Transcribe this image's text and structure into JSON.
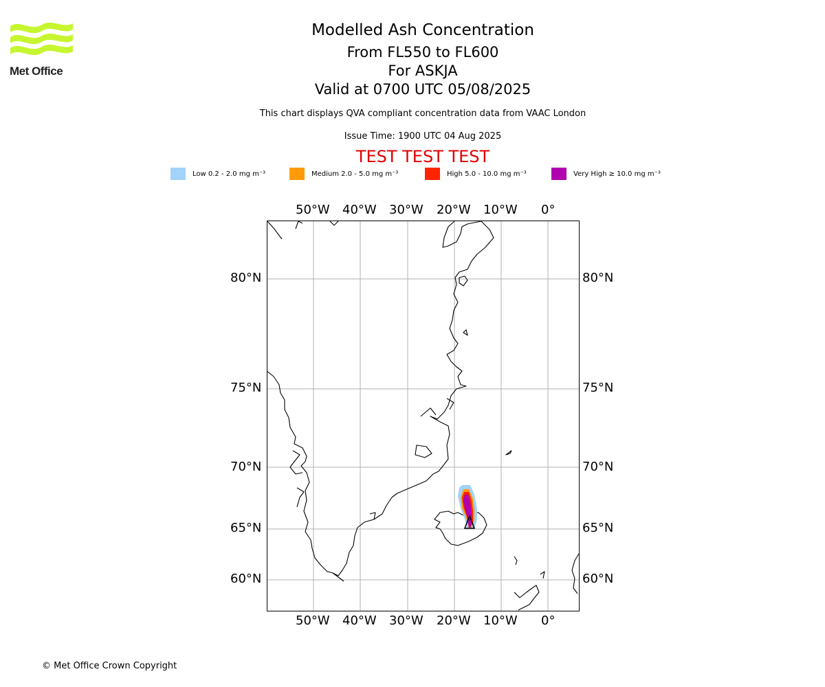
{
  "logo": {
    "text": "Met Office",
    "color": "#c6f62f"
  },
  "header": {
    "title": "Modelled Ash Concentration",
    "levels": "From FL550 to FL600",
    "volcano": "For ASKJA",
    "valid": "Valid at 0700 UTC 05/08/2025",
    "note": "This chart displays QVA compliant concentration data from VAAC London",
    "issue": "Issue Time: 1900 UTC 04 Aug 2025",
    "test_banner": "TEST TEST TEST"
  },
  "legend": [
    {
      "label": "Low 0.2 - 2.0 mg m⁻³",
      "color": "#a1d3fb"
    },
    {
      "label": "Medium 2.0 - 5.0 mg m⁻³",
      "color": "#ff9a0a"
    },
    {
      "label": "High 5.0 - 10.0 mg m⁻³",
      "color": "#ff2400"
    },
    {
      "label": "Very High ≥ 10.0 mg m⁻³",
      "color": "#b000b0"
    }
  ],
  "map": {
    "lon_labels": [
      "50°W",
      "40°W",
      "30°W",
      "20°W",
      "10°W",
      "0°"
    ],
    "lat_labels": [
      "80°N",
      "75°N",
      "70°N",
      "65°N",
      "60°N"
    ],
    "lon_range": [
      -60,
      6
    ],
    "lat_range": [
      57.5,
      82.5
    ],
    "volcano_lat": 65.03,
    "volcano_lon": -16.75
  },
  "footer": {
    "copyright": "© Met Office Crown Copyright"
  }
}
